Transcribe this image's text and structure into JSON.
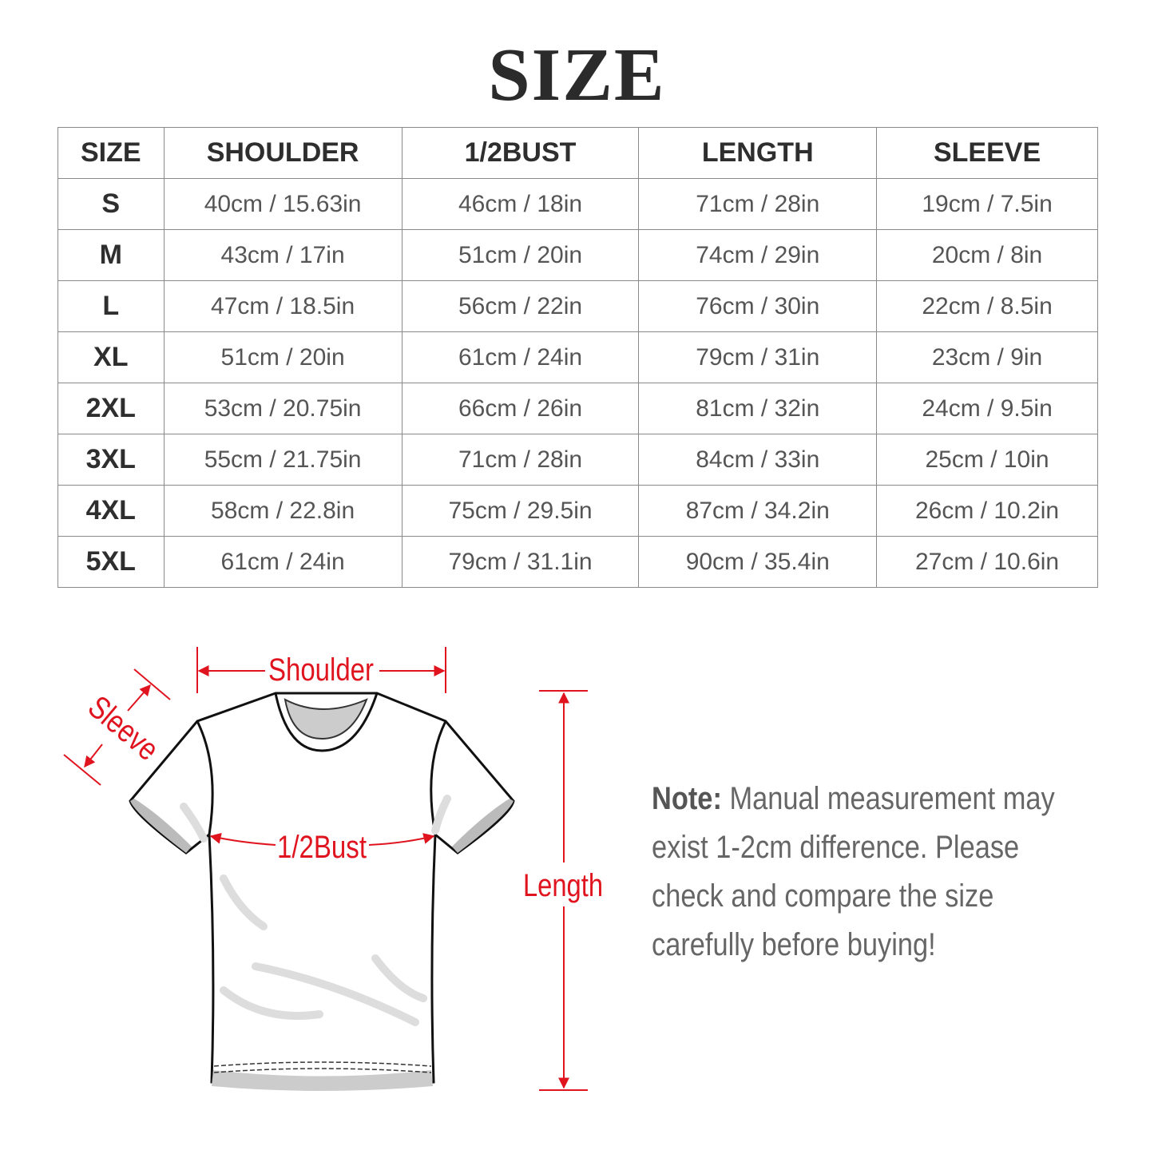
{
  "title": "SIZE",
  "table": {
    "headers": [
      "SIZE",
      "SHOULDER",
      "1/2BUST",
      "LENGTH",
      "SLEEVE"
    ],
    "rows": [
      [
        "S",
        "40cm / 15.63in",
        "46cm / 18in",
        "71cm / 28in",
        "19cm / 7.5in"
      ],
      [
        "M",
        "43cm / 17in",
        "51cm / 20in",
        "74cm / 29in",
        "20cm / 8in"
      ],
      [
        "L",
        "47cm / 18.5in",
        "56cm / 22in",
        "76cm / 30in",
        "22cm / 8.5in"
      ],
      [
        "XL",
        "51cm / 20in",
        "61cm / 24in",
        "79cm / 31in",
        "23cm / 9in"
      ],
      [
        "2XL",
        "53cm / 20.75in",
        "66cm / 26in",
        "81cm / 32in",
        "24cm / 9.5in"
      ],
      [
        "3XL",
        "55cm / 21.75in",
        "71cm / 28in",
        "84cm / 33in",
        "25cm / 10in"
      ],
      [
        "4XL",
        "58cm / 22.8in",
        "75cm / 29.5in",
        "87cm / 34.2in",
        "26cm / 10.2in"
      ],
      [
        "5XL",
        "61cm / 24in",
        "79cm / 31.1in",
        "90cm / 35.4in",
        "27cm / 10.6in"
      ]
    ]
  },
  "diagram": {
    "shoulder": "Shoulder",
    "sleeve": "Sleeve",
    "bust": "1/2Bust",
    "length": "Length",
    "accent_color": "#e0141e"
  },
  "note": {
    "label": "Note:",
    "lines": [
      " Manual measurement may",
      "exist 1-2cm difference. Please",
      "check and compare the size",
      "carefully before buying!"
    ]
  }
}
